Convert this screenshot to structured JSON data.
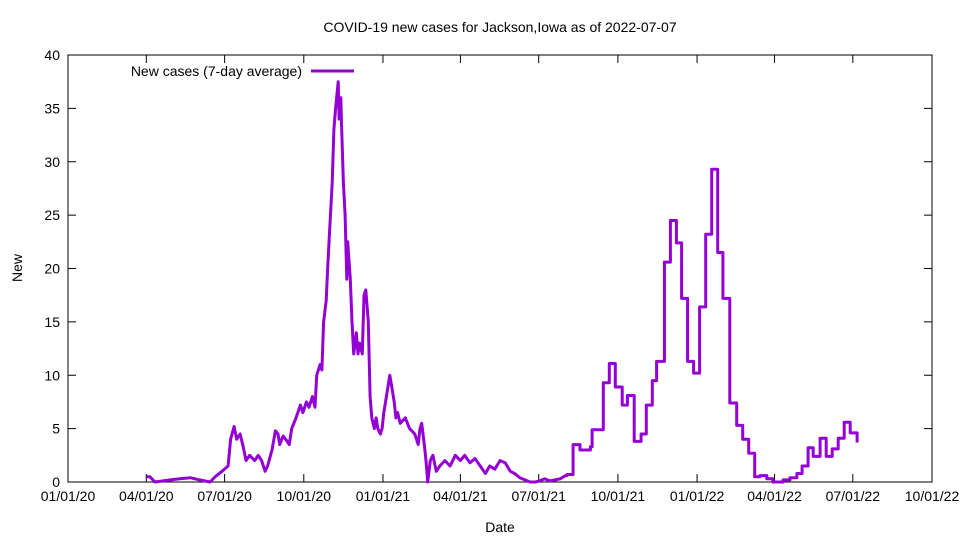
{
  "chart_data": {
    "type": "line",
    "title": "COVID-19 new cases for Jackson,Iowa as of 2022-07-07",
    "xlabel": "Date",
    "ylabel": "New",
    "ylim": [
      0,
      40
    ],
    "yticks": [
      0,
      5,
      10,
      15,
      20,
      25,
      30,
      35,
      40
    ],
    "x_origin": "2020-01-01",
    "xlim_days": [
      0,
      1004
    ],
    "xticks": [
      {
        "day": 0,
        "label": "01/01/20"
      },
      {
        "day": 91,
        "label": "04/01/20"
      },
      {
        "day": 182,
        "label": "07/01/20"
      },
      {
        "day": 274,
        "label": "10/01/20"
      },
      {
        "day": 366,
        "label": "01/01/21"
      },
      {
        "day": 456,
        "label": "04/01/21"
      },
      {
        "day": 547,
        "label": "07/01/21"
      },
      {
        "day": 639,
        "label": "10/01/21"
      },
      {
        "day": 731,
        "label": "01/01/22"
      },
      {
        "day": 821,
        "label": "04/01/22"
      },
      {
        "day": 912,
        "label": "07/01/22"
      },
      {
        "day": 1004,
        "label": "10/01/22"
      }
    ],
    "grid": false,
    "legend": "top-left",
    "series": [
      {
        "name": "New cases (7-day average)",
        "color": "#9400d3",
        "steps_after_day": 578,
        "values": [
          [
            91,
            0.5
          ],
          [
            95,
            0.5
          ],
          [
            101,
            0
          ],
          [
            119,
            0.2
          ],
          [
            130,
            0.3
          ],
          [
            142,
            0.4
          ],
          [
            153,
            0.2
          ],
          [
            165,
            0
          ],
          [
            171,
            0.5
          ],
          [
            179,
            1
          ],
          [
            186,
            1.5
          ],
          [
            189,
            4
          ],
          [
            193,
            5.2
          ],
          [
            196,
            4
          ],
          [
            200,
            4.5
          ],
          [
            203,
            3.5
          ],
          [
            207,
            2
          ],
          [
            211,
            2.5
          ],
          [
            217,
            2
          ],
          [
            221,
            2.5
          ],
          [
            225,
            2
          ],
          [
            229,
            1
          ],
          [
            232,
            1.5
          ],
          [
            237,
            3
          ],
          [
            241,
            4.8
          ],
          [
            244,
            4.5
          ],
          [
            246,
            3.5
          ],
          [
            250,
            4.3
          ],
          [
            253,
            4
          ],
          [
            257,
            3.5
          ],
          [
            260,
            5
          ],
          [
            265,
            6
          ],
          [
            270,
            7.2
          ],
          [
            273,
            6.5
          ],
          [
            277,
            7.5
          ],
          [
            280,
            7
          ],
          [
            284,
            8
          ],
          [
            287,
            7
          ],
          [
            289,
            10
          ],
          [
            293,
            11
          ],
          [
            295,
            10.5
          ],
          [
            297,
            15
          ],
          [
            300,
            17
          ],
          [
            302,
            20.5
          ],
          [
            304,
            23.5
          ],
          [
            307,
            28
          ],
          [
            309,
            33
          ],
          [
            311,
            35
          ],
          [
            314,
            37.5
          ],
          [
            315,
            34
          ],
          [
            317,
            36
          ],
          [
            318,
            33
          ],
          [
            320,
            28
          ],
          [
            322,
            25
          ],
          [
            324,
            19
          ],
          [
            325,
            22.5
          ],
          [
            328,
            19
          ],
          [
            330,
            15
          ],
          [
            332,
            12
          ],
          [
            335,
            14
          ],
          [
            337,
            12
          ],
          [
            339,
            13
          ],
          [
            342,
            12
          ],
          [
            344,
            17.5
          ],
          [
            346,
            18
          ],
          [
            349,
            15
          ],
          [
            351,
            8
          ],
          [
            353,
            6
          ],
          [
            356,
            5
          ],
          [
            358,
            6
          ],
          [
            360,
            5
          ],
          [
            363,
            4.5
          ],
          [
            365,
            5
          ],
          [
            367,
            6.5
          ],
          [
            370,
            8
          ],
          [
            372,
            9
          ],
          [
            374,
            10
          ],
          [
            376,
            9
          ],
          [
            379,
            7.5
          ],
          [
            381,
            6
          ],
          [
            383,
            6.5
          ],
          [
            386,
            5.5
          ],
          [
            392,
            6
          ],
          [
            397,
            5
          ],
          [
            403,
            4.5
          ],
          [
            407,
            3.5
          ],
          [
            409,
            5
          ],
          [
            411,
            5.5
          ],
          [
            414,
            3.5
          ],
          [
            416,
            2
          ],
          [
            418,
            0
          ],
          [
            421,
            2
          ],
          [
            424,
            2.5
          ],
          [
            428,
            1
          ],
          [
            432,
            1.5
          ],
          [
            438,
            2
          ],
          [
            444,
            1.5
          ],
          [
            450,
            2.5
          ],
          [
            456,
            2
          ],
          [
            461,
            2.5
          ],
          [
            467,
            1.8
          ],
          [
            473,
            2.2
          ],
          [
            479,
            1.5
          ],
          [
            485,
            0.8
          ],
          [
            490,
            1.5
          ],
          [
            496,
            1.2
          ],
          [
            502,
            2
          ],
          [
            508,
            1.8
          ],
          [
            514,
            1
          ],
          [
            519,
            0.8
          ],
          [
            525,
            0.4
          ],
          [
            531,
            0.2
          ],
          [
            537,
            0
          ],
          [
            543,
            0
          ],
          [
            548,
            0.1
          ],
          [
            554,
            0.3
          ],
          [
            560,
            0.1
          ],
          [
            566,
            0.2
          ],
          [
            572,
            0.3
          ],
          [
            578,
            0.6
          ],
          [
            580,
            0.7
          ],
          [
            587,
            3.5
          ],
          [
            595,
            3.0
          ],
          [
            607,
            3.3
          ],
          [
            609,
            4.9
          ],
          [
            622,
            9.3
          ],
          [
            629,
            11.1
          ],
          [
            636,
            8.9
          ],
          [
            644,
            7.2
          ],
          [
            650,
            8.1
          ],
          [
            658,
            3.8
          ],
          [
            666,
            4.5
          ],
          [
            672,
            7.2
          ],
          [
            679,
            9.5
          ],
          [
            684,
            11.3
          ],
          [
            693,
            20.6
          ],
          [
            700,
            24.5
          ],
          [
            707,
            22.4
          ],
          [
            713,
            17.2
          ],
          [
            720,
            11.3
          ],
          [
            727,
            10.2
          ],
          [
            734,
            16.4
          ],
          [
            741,
            23.2
          ],
          [
            748,
            29.3
          ],
          [
            755,
            21.5
          ],
          [
            761,
            17.2
          ],
          [
            769,
            7.4
          ],
          [
            777,
            5.3
          ],
          [
            784,
            4.0
          ],
          [
            791,
            2.7
          ],
          [
            798,
            0.5
          ],
          [
            804,
            0.6
          ],
          [
            812,
            0.3
          ],
          [
            819,
            0
          ],
          [
            831,
            0.2
          ],
          [
            839,
            0.4
          ],
          [
            847,
            0.8
          ],
          [
            853,
            1.5
          ],
          [
            860,
            3.2
          ],
          [
            866,
            2.4
          ],
          [
            874,
            4.1
          ],
          [
            881,
            2.4
          ],
          [
            888,
            3.1
          ],
          [
            895,
            4.1
          ],
          [
            902,
            5.6
          ],
          [
            909,
            4.6
          ],
          [
            917,
            3.7
          ]
        ]
      }
    ]
  }
}
